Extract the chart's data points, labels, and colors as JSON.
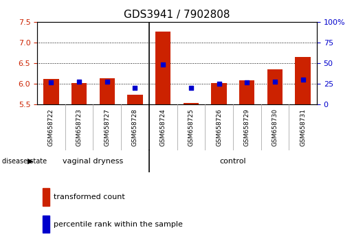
{
  "title": "GDS3941 / 7902808",
  "samples": [
    "GSM658722",
    "GSM658723",
    "GSM658727",
    "GSM658728",
    "GSM658724",
    "GSM658725",
    "GSM658726",
    "GSM658729",
    "GSM658730",
    "GSM658731"
  ],
  "transformed_count": [
    6.12,
    6.02,
    6.14,
    5.73,
    7.26,
    5.53,
    6.02,
    6.09,
    6.35,
    6.65
  ],
  "percentile_rank": [
    27,
    28,
    28,
    20,
    48,
    20,
    25,
    27,
    28,
    30
  ],
  "ylim_left": [
    5.5,
    7.5
  ],
  "ylim_right": [
    0,
    100
  ],
  "yticks_left": [
    5.5,
    6.0,
    6.5,
    7.0,
    7.5
  ],
  "yticks_right": [
    0,
    25,
    50,
    75,
    100
  ],
  "ytick_labels_right": [
    "0",
    "25",
    "50",
    "75",
    "100%"
  ],
  "bar_base": 5.5,
  "bar_color": "#cc2200",
  "dot_color": "#0000cc",
  "grid_color": "#000000",
  "bg_color": "#ffffff",
  "tick_area_color": "#d0d0d0",
  "green_color": "#66dd66",
  "vaginal_label": "vaginal dryness",
  "control_label": "control",
  "disease_state_label": "disease state",
  "legend_bar_label": "transformed count",
  "legend_dot_label": "percentile rank within the sample",
  "n_vaginal": 4,
  "n_control": 6,
  "title_fontsize": 11,
  "tick_fontsize": 8,
  "sample_fontsize": 6.5,
  "label_fontsize": 8
}
